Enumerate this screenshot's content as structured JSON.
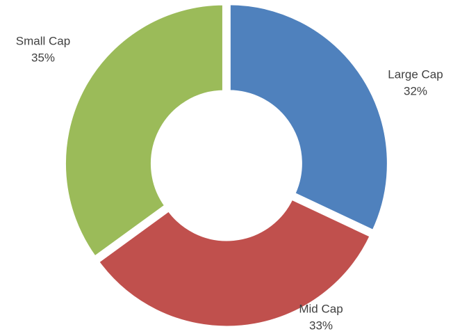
{
  "chart_data": {
    "type": "donut",
    "categories": [
      "Large Cap",
      "Mid Cap",
      "Small Cap"
    ],
    "values": [
      32,
      33,
      35
    ],
    "value_labels": [
      "32%",
      "33%",
      "35%"
    ],
    "colors": [
      "#4f81bd",
      "#c0504d",
      "#9bbb59"
    ]
  }
}
